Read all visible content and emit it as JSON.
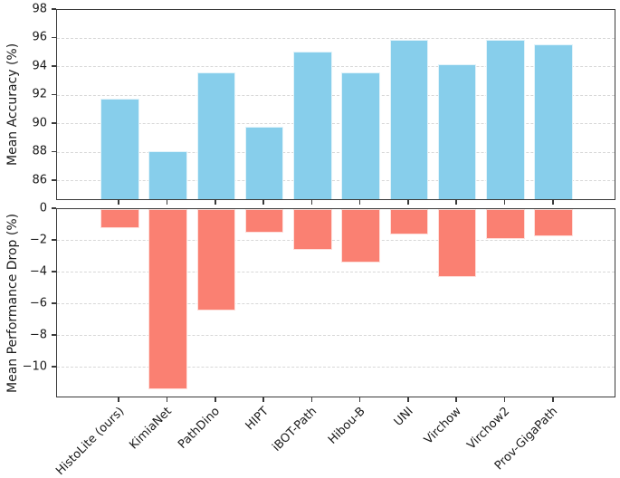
{
  "figure": {
    "background": "#ffffff",
    "spine_color": "#3a3a3a",
    "grid_color": "#d8d8d8",
    "text_color": "#1a1a1a"
  },
  "chart_data": [
    {
      "type": "bar",
      "title": "",
      "ylabel": "Mean Accuracy (%)",
      "xlabel": "",
      "categories": [
        "HistoLite (ours)",
        "KimiaNet",
        "PathDino",
        "HIPT",
        "iBOT-Path",
        "Hibou-B",
        "UNI",
        "Virchow",
        "Virchow2",
        "Prov-GigaPath"
      ],
      "values": [
        91.8,
        88.1,
        93.6,
        89.8,
        95.1,
        93.6,
        95.9,
        94.2,
        95.9,
        95.6
      ],
      "ylim": [
        84.6,
        98
      ],
      "yticks": [
        86,
        88,
        90,
        92,
        94,
        96,
        98
      ],
      "bar_color": "#87CEEB",
      "grid": true,
      "grid_style": "dashed",
      "legend": null,
      "x_tick_labels_visible": false
    },
    {
      "type": "bar",
      "title": "",
      "ylabel": "Mean Performance Drop (%)",
      "xlabel": "",
      "categories": [
        "HistoLite (ours)",
        "KimiaNet",
        "PathDino",
        "HIPT",
        "iBOT-Path",
        "Hibou-B",
        "UNI",
        "Virchow",
        "Virchow2",
        "Prov-GigaPath"
      ],
      "values": [
        -1.2,
        -11.4,
        -6.4,
        -1.5,
        -2.6,
        -3.4,
        -1.6,
        -4.3,
        -1.9,
        -1.7
      ],
      "ylim": [
        -11.95,
        0
      ],
      "yticks": [
        0,
        -2,
        -4,
        -6,
        -8,
        -10
      ],
      "bar_color": "#FA8072",
      "grid": true,
      "grid_style": "dashed",
      "legend": null,
      "x_tick_labels_visible": true,
      "x_tick_label_rotation": 45
    }
  ]
}
